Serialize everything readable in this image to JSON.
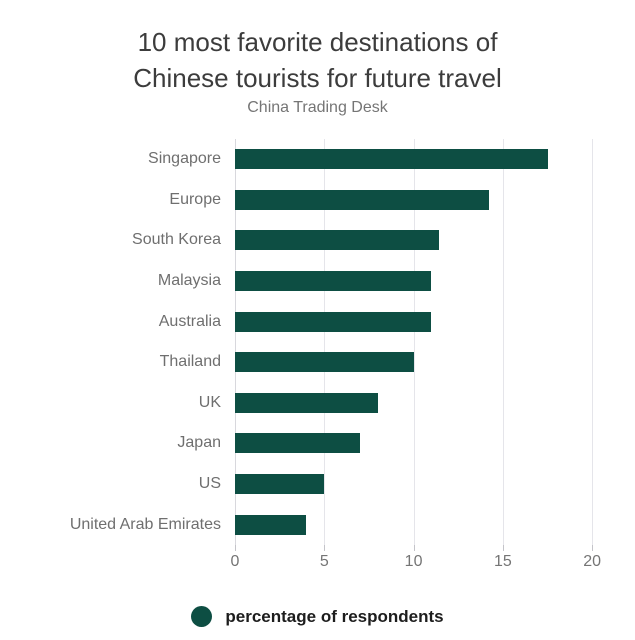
{
  "header": {
    "title_line1": "10 most favorite destinations of",
    "title_line2": "Chinese tourists for future travel",
    "subtitle": "China Trading Desk"
  },
  "chart_data": {
    "type": "bar",
    "orientation": "horizontal",
    "title": "10 most favorite destinations of Chinese tourists for future travel",
    "subtitle": "China Trading Desk",
    "categories": [
      "Singapore",
      "Europe",
      "South Korea",
      "Malaysia",
      "Australia",
      "Thailand",
      "UK",
      "Japan",
      "US",
      "United Arab Emirates"
    ],
    "values": [
      17.5,
      14.2,
      11.4,
      11,
      11,
      10,
      8,
      7,
      5,
      4
    ],
    "xlabel": "",
    "ylabel": "",
    "xlim": [
      0,
      21
    ],
    "xticks": [
      0,
      5,
      10,
      15,
      20
    ],
    "grid": true,
    "bar_color": "#0d4e43",
    "gridline_color": "#e5e5ea",
    "legend": {
      "label": "percentage of respondents",
      "color": "#0d4e43",
      "position": "bottom"
    }
  }
}
